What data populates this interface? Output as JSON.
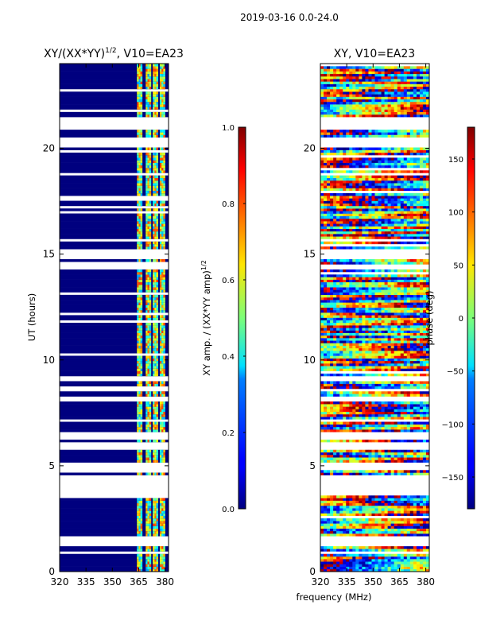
{
  "figure": {
    "suptitle": "2019-03-16 0.0-24.0",
    "xlabel": "frequency (MHz)"
  },
  "chart_data": [
    {
      "type": "heatmap",
      "title_base": "XY/(XX*YY)",
      "title_sup": "1/2",
      "title_tail": ", V10=EA23",
      "xlabel": "",
      "ylabel": "UT (hours)",
      "xlim": [
        320,
        382
      ],
      "ylim": [
        0,
        24
      ],
      "xticks": [
        "320",
        "335",
        "350",
        "365",
        "380"
      ],
      "xtick_values": [
        320,
        335,
        350,
        365,
        380
      ],
      "yticks": [
        "0",
        "5",
        "10",
        "15",
        "20"
      ],
      "ytick_values": [
        0,
        5,
        10,
        15,
        20
      ],
      "colormap": "jet",
      "colorbar": {
        "label_base": "XY amp. / (XX*YY amp)",
        "label_sup": "1/2",
        "range": [
          0.0,
          1.0
        ],
        "ticks": [
          "0.0",
          "0.2",
          "0.4",
          "0.6",
          "0.8",
          "1.0"
        ],
        "tick_values": [
          0.0,
          0.2,
          0.4,
          0.6,
          0.8,
          1.0
        ]
      },
      "features": {
        "background_value": 0.0,
        "high_band_MHz": [
          [
            364,
            367
          ],
          [
            369,
            372
          ],
          [
            373,
            376
          ],
          [
            377,
            380
          ]
        ],
        "high_band_value": 0.55
      }
    },
    {
      "type": "heatmap",
      "title": "XY, V10=EA23",
      "xlabel": "",
      "ylabel": "",
      "xlim": [
        320,
        382
      ],
      "ylim": [
        0,
        24
      ],
      "xticks": [
        "320",
        "335",
        "350",
        "365",
        "380"
      ],
      "xtick_values": [
        320,
        335,
        350,
        365,
        380
      ],
      "yticks": [
        "0",
        "5",
        "10",
        "15",
        "20"
      ],
      "ytick_values": [
        0,
        5,
        10,
        15,
        20
      ],
      "colormap": "jet",
      "colorbar": {
        "label": "phase (deg)",
        "range": [
          -180,
          180
        ],
        "ticks": [
          "−150",
          "−100",
          "−50",
          "0",
          "50",
          "100",
          "150"
        ],
        "tick_values": [
          -150,
          -100,
          -50,
          0,
          50,
          100,
          150
        ]
      }
    }
  ],
  "data_gaps_UT": [
    [
      0.85,
      0.95
    ],
    [
      1.25,
      1.65
    ],
    [
      3.55,
      4.5
    ],
    [
      4.75,
      5.2
    ],
    [
      5.8,
      6.1
    ],
    [
      6.2,
      6.6
    ],
    [
      7.05,
      7.2
    ],
    [
      8.0,
      8.25
    ],
    [
      8.5,
      8.6
    ],
    [
      9.0,
      9.3
    ],
    [
      14.3,
      14.55
    ],
    [
      14.8,
      15.3
    ],
    [
      15.55,
      15.7
    ],
    [
      20.05,
      20.55
    ],
    [
      20.85,
      21.45
    ]
  ],
  "colors": {
    "axis": "#000000",
    "background": "#ffffff",
    "gap": "#ffffff",
    "low": "#00007f"
  }
}
